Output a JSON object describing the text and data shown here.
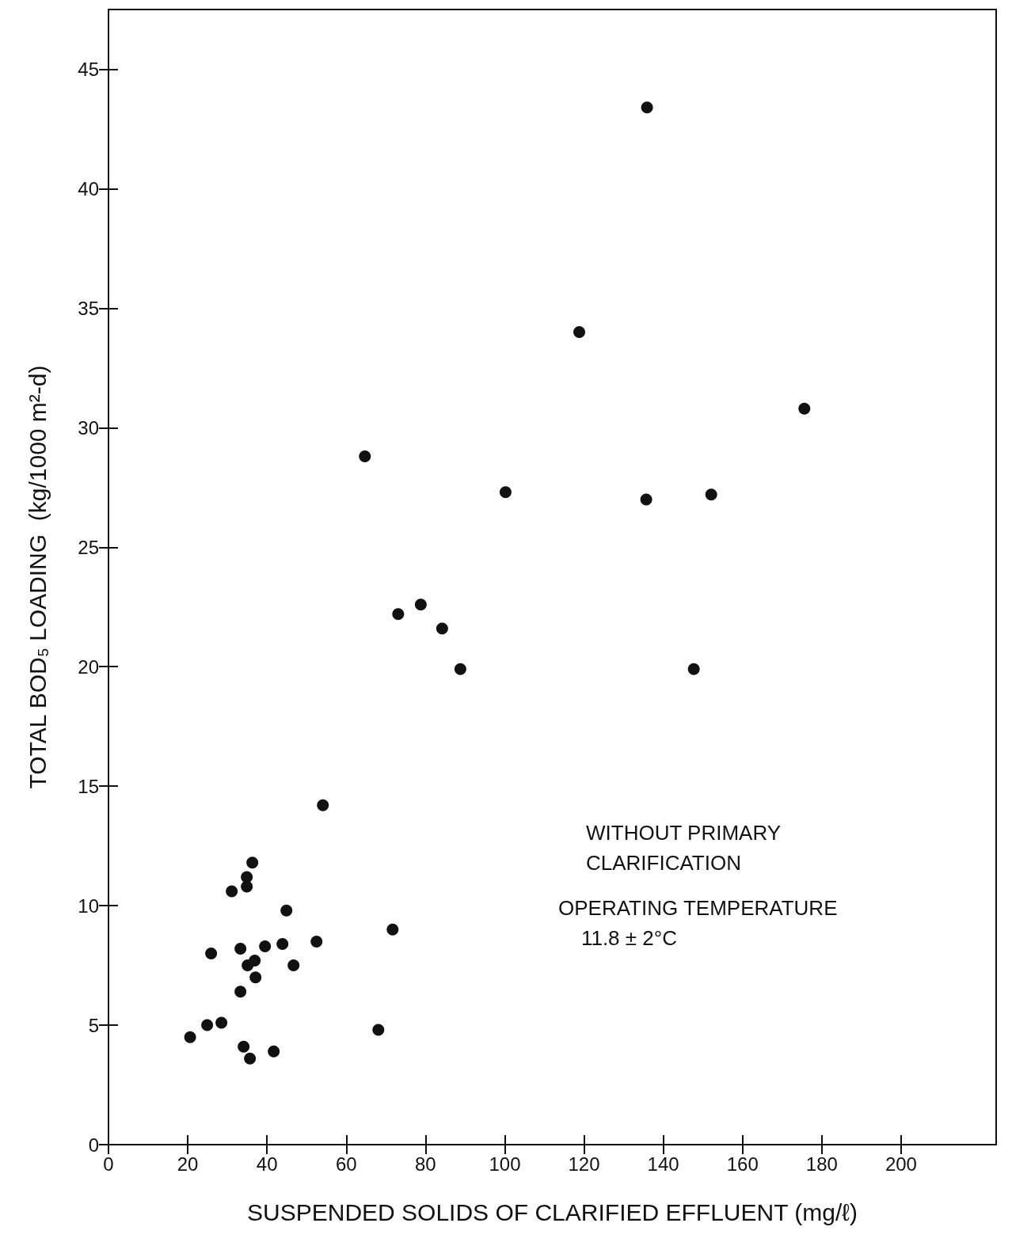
{
  "chart_data": {
    "type": "scatter",
    "xlabel": "SUSPENDED SOLIDS OF CLARIFIED EFFLUENT (mg/ℓ)",
    "ylabel": "TOTAL BOD₅ LOADING  (kg/1000 m²-d)",
    "annotations": [
      "WITHOUT PRIMARY\nCLARIFICATION",
      "OPERATING TEMPERATURE\n11.8 ± 2°C"
    ],
    "xlim": [
      0,
      224
    ],
    "xticks": [
      0,
      20,
      40,
      60,
      80,
      100,
      120,
      140,
      160,
      180,
      200
    ],
    "ylim": [
      0,
      47.5
    ],
    "yticks": [
      0,
      5,
      10,
      15,
      20,
      25,
      30,
      35,
      40,
      45
    ],
    "grid": false,
    "marker": "circle",
    "series": [
      {
        "color": "#111111",
        "x": [
          135.9,
          118.8,
          175.6,
          64.7,
          100.2,
          135.7,
          152.1,
          73.1,
          78.8,
          84.2,
          88.8,
          147.7,
          54.1,
          36.3,
          34.9,
          34.9,
          31.1,
          44.9,
          71.7,
          25.9,
          33.3,
          39.5,
          43.9,
          52.5,
          36.9,
          35.1,
          46.7,
          37.1,
          33.3,
          20.6,
          24.9,
          28.5,
          34.1,
          35.7,
          41.7,
          68.1
        ],
        "values": [
          43.4,
          34.0,
          30.8,
          28.8,
          27.3,
          27.0,
          27.2,
          22.2,
          22.6,
          21.6,
          19.9,
          19.9,
          14.2,
          11.8,
          11.2,
          10.8,
          10.6,
          9.8,
          9.0,
          8.0,
          8.2,
          8.3,
          8.4,
          8.5,
          7.7,
          7.5,
          7.5,
          7.0,
          6.4,
          4.5,
          5.0,
          5.1,
          4.1,
          3.6,
          3.9,
          4.8
        ]
      }
    ]
  }
}
